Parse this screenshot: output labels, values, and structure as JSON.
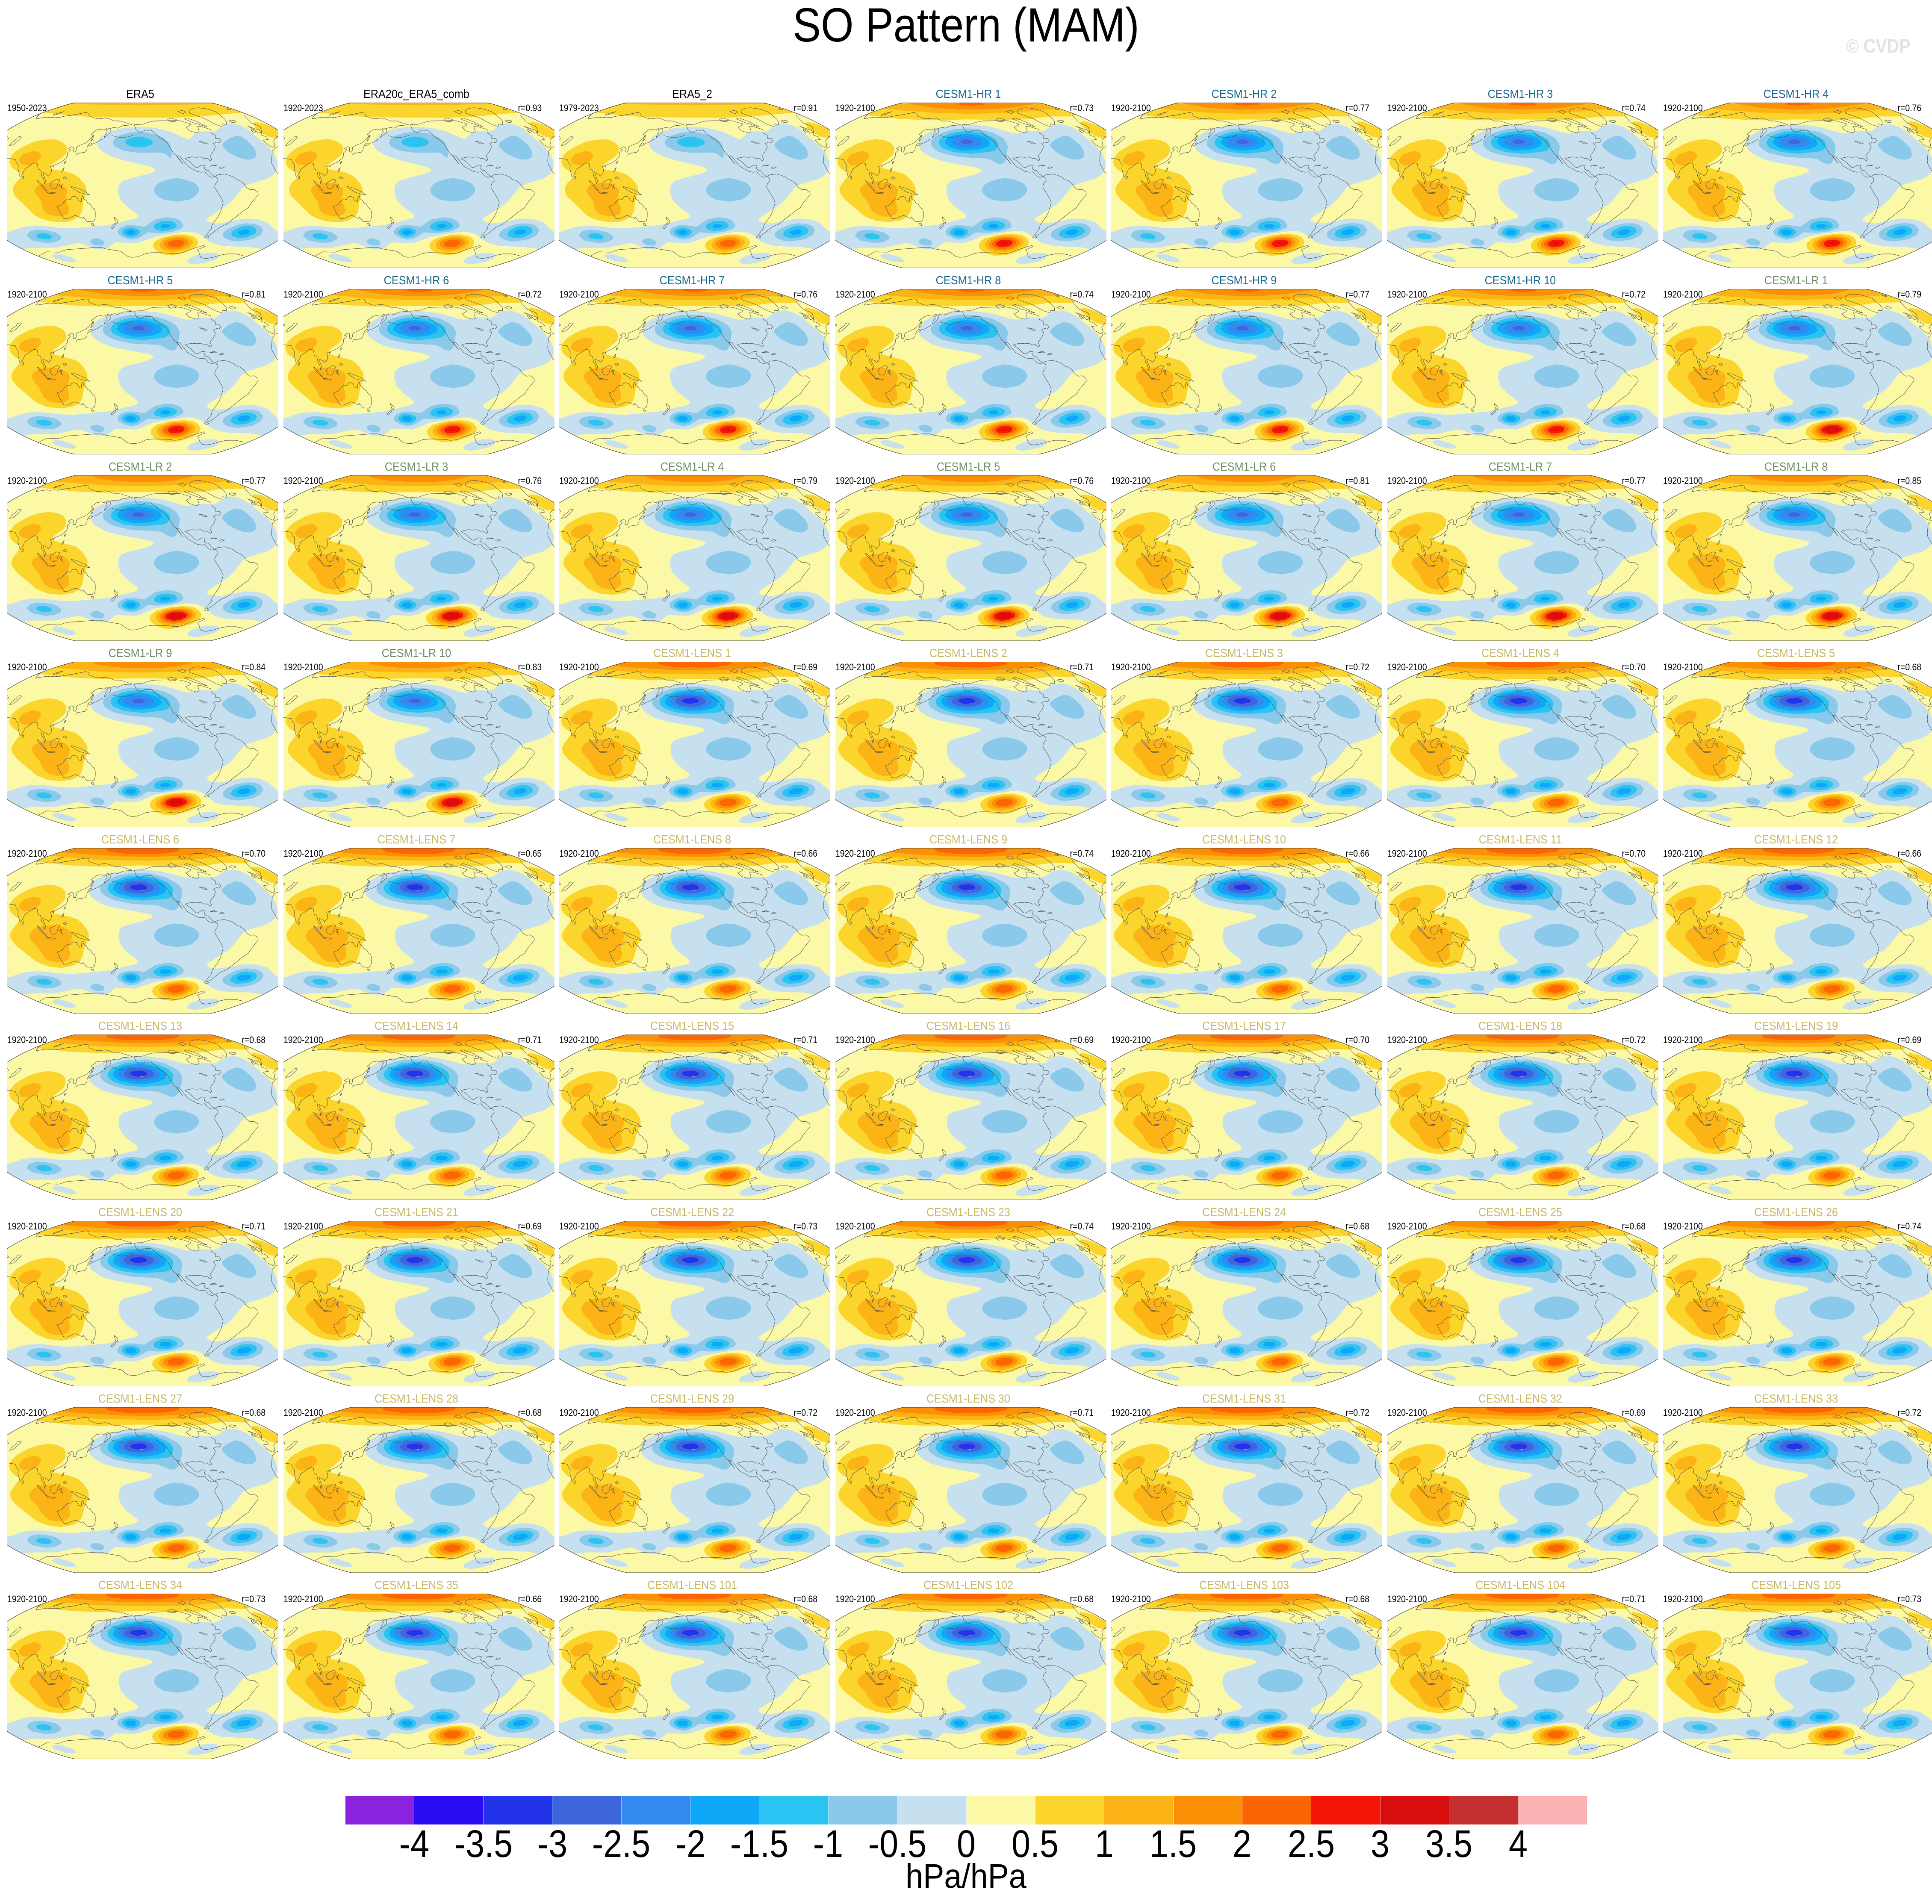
{
  "figure": {
    "title": "SO Pattern (MAM)",
    "watermark": "© CVDP"
  },
  "colorbar": {
    "units": "hPa/hPa",
    "tick_labels": [
      "-4",
      "-3.5",
      "-3",
      "-2.5",
      "-2",
      "-1.5",
      "-1",
      "-0.5",
      "0",
      "0.5",
      "1",
      "1.5",
      "2",
      "2.5",
      "3",
      "3.5",
      "4"
    ],
    "colors": [
      "#8B22DD",
      "#2A0DF2",
      "#2333E9",
      "#3E66DC",
      "#3389ED",
      "#0FA7F8",
      "#2AC3F2",
      "#8AC9EA",
      "#C6E0F0",
      "#FBF8A6",
      "#FBD42C",
      "#FCB315",
      "#FB9007",
      "#FB6502",
      "#F51507",
      "#D80D0D",
      "#C52F2F",
      "#FBB3B3"
    ]
  },
  "group_title_colors": {
    "obs": "#000000",
    "hr": "#15688F",
    "lr": "#6E8F68",
    "lens": "#C9B964"
  },
  "chart_data": {
    "type": "map-grid",
    "rows": 9,
    "cols": 7,
    "projection": "winkel-tripel, Pacific-centered",
    "season": "MAM",
    "variable": "Southern Oscillation SLP regression pattern",
    "units": "hPa/hPa",
    "colorbar_levels": [
      -4,
      -3.5,
      -3,
      -2.5,
      -2,
      -1.5,
      -1,
      -0.5,
      0,
      0.5,
      1,
      1.5,
      2,
      2.5,
      3,
      3.5,
      4
    ],
    "panels": [
      {
        "name": "ERA5",
        "period": "1950-2023",
        "r_label": "",
        "group": "obs"
      },
      {
        "name": "ERA20c_ERA5_comb",
        "period": "1920-2023",
        "r_label": "r=0.93",
        "group": "obs"
      },
      {
        "name": "ERA5_2",
        "period": "1979-2023",
        "r_label": "r=0.91",
        "group": "obs"
      },
      {
        "name": "CESM1-HR 1",
        "period": "1920-2100",
        "r_label": "r=0.73",
        "group": "hr"
      },
      {
        "name": "CESM1-HR 2",
        "period": "1920-2100",
        "r_label": "r=0.77",
        "group": "hr"
      },
      {
        "name": "CESM1-HR 3",
        "period": "1920-2100",
        "r_label": "r=0.74",
        "group": "hr"
      },
      {
        "name": "CESM1-HR 4",
        "period": "1920-2100",
        "r_label": "r=0.76",
        "group": "hr"
      },
      {
        "name": "CESM1-HR 5",
        "period": "1920-2100",
        "r_label": "r=0.81",
        "group": "hr"
      },
      {
        "name": "CESM1-HR 6",
        "period": "1920-2100",
        "r_label": "r=0.72",
        "group": "hr"
      },
      {
        "name": "CESM1-HR 7",
        "period": "1920-2100",
        "r_label": "r=0.76",
        "group": "hr"
      },
      {
        "name": "CESM1-HR 8",
        "period": "1920-2100",
        "r_label": "r=0.74",
        "group": "hr"
      },
      {
        "name": "CESM1-HR 9",
        "period": "1920-2100",
        "r_label": "r=0.77",
        "group": "hr"
      },
      {
        "name": "CESM1-HR 10",
        "period": "1920-2100",
        "r_label": "r=0.72",
        "group": "hr"
      },
      {
        "name": "CESM1-LR 1",
        "period": "1920-2100",
        "r_label": "r=0.79",
        "group": "lr"
      },
      {
        "name": "CESM1-LR 2",
        "period": "1920-2100",
        "r_label": "r=0.77",
        "group": "lr"
      },
      {
        "name": "CESM1-LR 3",
        "period": "1920-2100",
        "r_label": "r=0.76",
        "group": "lr"
      },
      {
        "name": "CESM1-LR 4",
        "period": "1920-2100",
        "r_label": "r=0.79",
        "group": "lr"
      },
      {
        "name": "CESM1-LR 5",
        "period": "1920-2100",
        "r_label": "r=0.76",
        "group": "lr"
      },
      {
        "name": "CESM1-LR 6",
        "period": "1920-2100",
        "r_label": "r=0.81",
        "group": "lr"
      },
      {
        "name": "CESM1-LR 7",
        "period": "1920-2100",
        "r_label": "r=0.77",
        "group": "lr"
      },
      {
        "name": "CESM1-LR 8",
        "period": "1920-2100",
        "r_label": "r=0.85",
        "group": "lr"
      },
      {
        "name": "CESM1-LR 9",
        "period": "1920-2100",
        "r_label": "r=0.84",
        "group": "lr"
      },
      {
        "name": "CESM1-LR 10",
        "period": "1920-2100",
        "r_label": "r=0.83",
        "group": "lr"
      },
      {
        "name": "CESM1-LENS 1",
        "period": "1920-2100",
        "r_label": "r=0.69",
        "group": "lens"
      },
      {
        "name": "CESM1-LENS 2",
        "period": "1920-2100",
        "r_label": "r=0.71",
        "group": "lens"
      },
      {
        "name": "CESM1-LENS 3",
        "period": "1920-2100",
        "r_label": "r=0.72",
        "group": "lens"
      },
      {
        "name": "CESM1-LENS 4",
        "period": "1920-2100",
        "r_label": "r=0.70",
        "group": "lens"
      },
      {
        "name": "CESM1-LENS 5",
        "period": "1920-2100",
        "r_label": "r=0.68",
        "group": "lens"
      },
      {
        "name": "CESM1-LENS 6",
        "period": "1920-2100",
        "r_label": "r=0.70",
        "group": "lens"
      },
      {
        "name": "CESM1-LENS 7",
        "period": "1920-2100",
        "r_label": "r=0.65",
        "group": "lens"
      },
      {
        "name": "CESM1-LENS 8",
        "period": "1920-2100",
        "r_label": "r=0.66",
        "group": "lens"
      },
      {
        "name": "CESM1-LENS 9",
        "period": "1920-2100",
        "r_label": "r=0.74",
        "group": "lens"
      },
      {
        "name": "CESM1-LENS 10",
        "period": "1920-2100",
        "r_label": "r=0.66",
        "group": "lens"
      },
      {
        "name": "CESM1-LENS 11",
        "period": "1920-2100",
        "r_label": "r=0.70",
        "group": "lens"
      },
      {
        "name": "CESM1-LENS 12",
        "period": "1920-2100",
        "r_label": "r=0.66",
        "group": "lens"
      },
      {
        "name": "CESM1-LENS 13",
        "period": "1920-2100",
        "r_label": "r=0.68",
        "group": "lens"
      },
      {
        "name": "CESM1-LENS 14",
        "period": "1920-2100",
        "r_label": "r=0.71",
        "group": "lens"
      },
      {
        "name": "CESM1-LENS 15",
        "period": "1920-2100",
        "r_label": "r=0.71",
        "group": "lens"
      },
      {
        "name": "CESM1-LENS 16",
        "period": "1920-2100",
        "r_label": "r=0.69",
        "group": "lens"
      },
      {
        "name": "CESM1-LENS 17",
        "period": "1920-2100",
        "r_label": "r=0.70",
        "group": "lens"
      },
      {
        "name": "CESM1-LENS 18",
        "period": "1920-2100",
        "r_label": "r=0.72",
        "group": "lens"
      },
      {
        "name": "CESM1-LENS 19",
        "period": "1920-2100",
        "r_label": "r=0.69",
        "group": "lens"
      },
      {
        "name": "CESM1-LENS 20",
        "period": "1920-2100",
        "r_label": "r=0.71",
        "group": "lens"
      },
      {
        "name": "CESM1-LENS 21",
        "period": "1920-2100",
        "r_label": "r=0.69",
        "group": "lens"
      },
      {
        "name": "CESM1-LENS 22",
        "period": "1920-2100",
        "r_label": "r=0.73",
        "group": "lens"
      },
      {
        "name": "CESM1-LENS 23",
        "period": "1920-2100",
        "r_label": "r=0.74",
        "group": "lens"
      },
      {
        "name": "CESM1-LENS 24",
        "period": "1920-2100",
        "r_label": "r=0.68",
        "group": "lens"
      },
      {
        "name": "CESM1-LENS 25",
        "period": "1920-2100",
        "r_label": "r=0.68",
        "group": "lens"
      },
      {
        "name": "CESM1-LENS 26",
        "period": "1920-2100",
        "r_label": "r=0.74",
        "group": "lens"
      },
      {
        "name": "CESM1-LENS 27",
        "period": "1920-2100",
        "r_label": "r=0.68",
        "group": "lens"
      },
      {
        "name": "CESM1-LENS 28",
        "period": "1920-2100",
        "r_label": "r=0.68",
        "group": "lens"
      },
      {
        "name": "CESM1-LENS 29",
        "period": "1920-2100",
        "r_label": "r=0.72",
        "group": "lens"
      },
      {
        "name": "CESM1-LENS 30",
        "period": "1920-2100",
        "r_label": "r=0.71",
        "group": "lens"
      },
      {
        "name": "CESM1-LENS 31",
        "period": "1920-2100",
        "r_label": "r=0.72",
        "group": "lens"
      },
      {
        "name": "CESM1-LENS 32",
        "period": "1920-2100",
        "r_label": "r=0.69",
        "group": "lens"
      },
      {
        "name": "CESM1-LENS 33",
        "period": "1920-2100",
        "r_label": "r=0.72",
        "group": "lens"
      },
      {
        "name": "CESM1-LENS 34",
        "period": "1920-2100",
        "r_label": "r=0.73",
        "group": "lens"
      },
      {
        "name": "CESM1-LENS 35",
        "period": "1920-2100",
        "r_label": "r=0.66",
        "group": "lens"
      },
      {
        "name": "CESM1-LENS 101",
        "period": "1920-2100",
        "r_label": "r=0.68",
        "group": "lens"
      },
      {
        "name": "CESM1-LENS 102",
        "period": "1920-2100",
        "r_label": "r=0.68",
        "group": "lens"
      },
      {
        "name": "CESM1-LENS 103",
        "period": "1920-2100",
        "r_label": "r=0.68",
        "group": "lens"
      },
      {
        "name": "CESM1-LENS 104",
        "period": "1920-2100",
        "r_label": "r=0.71",
        "group": "lens"
      },
      {
        "name": "CESM1-LENS 105",
        "period": "1920-2100",
        "r_label": "r=0.73",
        "group": "lens"
      }
    ]
  }
}
